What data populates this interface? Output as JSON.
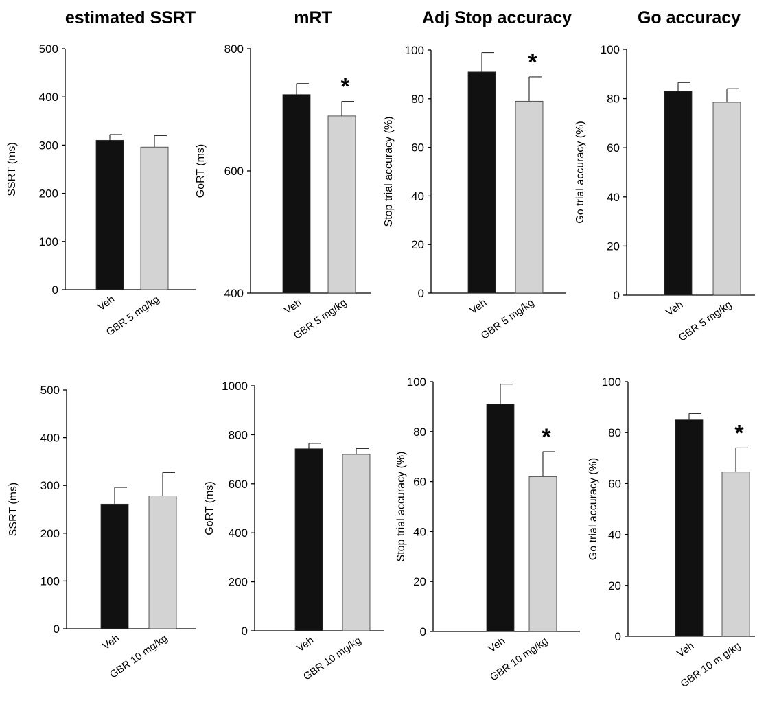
{
  "figure": {
    "column_titles": [
      "estimated SSRT",
      "mRT",
      "Adj Stop accuracy",
      "Go accuracy"
    ]
  },
  "colors": {
    "veh_bar": "#111111",
    "gbr_bar": "#d3d3d3",
    "axis": "#000000"
  },
  "chart_data": [
    {
      "type": "bar",
      "ylabel": "SSRT (ms)",
      "categories": [
        "Veh",
        "GBR 5 mg/kg"
      ],
      "values": [
        310,
        296
      ],
      "errors": [
        12,
        24
      ],
      "ylim": [
        0,
        500
      ],
      "yticks": [
        0,
        100,
        200,
        300,
        400,
        500
      ],
      "significance": [
        "",
        ""
      ]
    },
    {
      "type": "bar",
      "ylabel": "GoRT (ms)",
      "categories": [
        "Veh",
        "GBR 5 mg/kg"
      ],
      "values": [
        725,
        690
      ],
      "errors": [
        18,
        24
      ],
      "ylim": [
        400,
        800
      ],
      "yticks": [
        400,
        600,
        800
      ],
      "significance": [
        "",
        "*"
      ]
    },
    {
      "type": "bar",
      "ylabel": "Stop trial accuracy (%)",
      "categories": [
        "Veh",
        "GBR 5 mg/kg"
      ],
      "values": [
        91,
        79
      ],
      "errors": [
        8,
        10
      ],
      "ylim": [
        0,
        100
      ],
      "yticks": [
        0,
        20,
        40,
        60,
        80,
        100
      ],
      "significance": [
        "",
        "*"
      ]
    },
    {
      "type": "bar",
      "ylabel": "Go trial accuracy (%)",
      "categories": [
        "Veh",
        "GBR 5 mg/kg"
      ],
      "values": [
        83,
        78.5
      ],
      "errors": [
        3.5,
        5.5
      ],
      "ylim": [
        0,
        100
      ],
      "yticks": [
        0,
        20,
        40,
        60,
        80,
        100
      ],
      "significance": [
        "",
        ""
      ]
    },
    {
      "type": "bar",
      "ylabel": "SSRT (ms)",
      "categories": [
        "Veh",
        "GBR 10 mg/kg"
      ],
      "values": [
        261,
        278
      ],
      "errors": [
        35,
        49
      ],
      "ylim": [
        0,
        500
      ],
      "yticks": [
        0,
        100,
        200,
        300,
        400,
        500
      ],
      "significance": [
        "",
        ""
      ]
    },
    {
      "type": "bar",
      "ylabel": "GoRT (ms)",
      "categories": [
        "Veh",
        "GBR 10 mg/kg"
      ],
      "values": [
        743,
        720
      ],
      "errors": [
        22,
        24
      ],
      "ylim": [
        0,
        1000
      ],
      "yticks": [
        0,
        200,
        400,
        600,
        800,
        1000
      ],
      "significance": [
        "",
        ""
      ]
    },
    {
      "type": "bar",
      "ylabel": "Stop trial accuracy (%)",
      "categories": [
        "Veh",
        "GBR 10 mg/kg"
      ],
      "values": [
        91,
        62
      ],
      "errors": [
        8,
        10
      ],
      "ylim": [
        0,
        100
      ],
      "yticks": [
        0,
        20,
        40,
        60,
        80,
        100
      ],
      "significance": [
        "",
        "*"
      ]
    },
    {
      "type": "bar",
      "ylabel": "Go trial accuracy (%)",
      "categories": [
        "Veh",
        "GBR 10 m g/kg"
      ],
      "values": [
        85,
        64.5
      ],
      "errors": [
        2.5,
        9.5
      ],
      "ylim": [
        0,
        100
      ],
      "yticks": [
        0,
        20,
        40,
        60,
        80,
        100
      ],
      "significance": [
        "",
        "*"
      ]
    }
  ]
}
